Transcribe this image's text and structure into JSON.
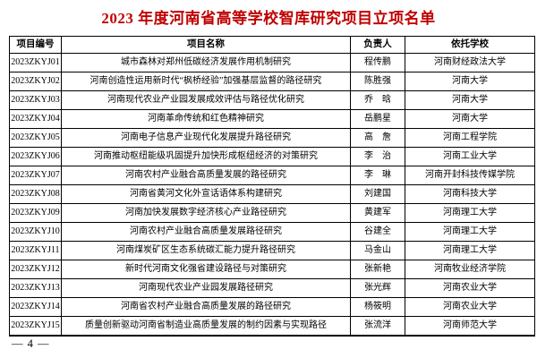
{
  "title": "2023 年度河南省高等学校智库研究项目立项名单",
  "title_color": "#c00000",
  "page_number": "— 4 —",
  "table": {
    "headers": [
      "项目编号",
      "项目名称",
      "负责人",
      "依托学校"
    ],
    "rows": [
      {
        "code": "2023ZKYJ01",
        "name": "城市森林对郑州低碳经济发展作用机制研究",
        "leader": "程传鹏",
        "school": "河南财经政法大学"
      },
      {
        "code": "2023ZKYJ02",
        "name": "河南创造性运用新时代“枫桥经验”加强基层监督的路径研究",
        "leader": "陈胜强",
        "school": "河南大学"
      },
      {
        "code": "2023ZKYJ03",
        "name": "河南现代农业产业园发展成效评估与路径优化研究",
        "leader": "乔　晗",
        "school": "河南大学"
      },
      {
        "code": "2023ZKYJ04",
        "name": "河南革命传统和红色精神研究",
        "leader": "岳鹏星",
        "school": "河南大学"
      },
      {
        "code": "2023ZKYJ05",
        "name": "河南电子信息产业现代化发展提升路径研究",
        "leader": "高　詹",
        "school": "河南工程学院"
      },
      {
        "code": "2023ZKYJ06",
        "name": "河南推动枢纽能级巩固提升加快形成枢纽经济的对策研究",
        "leader": "李　治",
        "school": "河南工业大学"
      },
      {
        "code": "2023ZKYJ07",
        "name": "河南农村产业融合高质量发展的路径研究",
        "leader": "李　琳",
        "school": "河南开封科技传媒学院"
      },
      {
        "code": "2023ZKYJ08",
        "name": "河南省黄河文化外宣话语体系构建研究",
        "leader": "刘建国",
        "school": "河南科技大学"
      },
      {
        "code": "2023ZKYJ09",
        "name": "河南加快发展数字经济核心产业路径研究",
        "leader": "黄建军",
        "school": "河南理工大学"
      },
      {
        "code": "2023ZKYJ10",
        "name": "河南农村产业融合高质量发展路径研究",
        "leader": "谷建全",
        "school": "河南理工大学"
      },
      {
        "code": "2023ZKYJ11",
        "name": "河南煤炭矿区生态系统碳汇能力提升路径研究",
        "leader": "马金山",
        "school": "河南理工大学"
      },
      {
        "code": "2023ZKYJ12",
        "name": "新时代河南文化强省建设路径与对策研究",
        "leader": "张新艳",
        "school": "河南牧业经济学院"
      },
      {
        "code": "2023ZKYJ13",
        "name": "河南现代农业产业园发展路径研究",
        "leader": "张光辉",
        "school": "河南农业大学"
      },
      {
        "code": "2023ZKYJ14",
        "name": "河南省农村产业融合高质量发展的路径研究",
        "leader": "杨筱明",
        "school": "河南农业大学"
      },
      {
        "code": "2023ZKYJ15",
        "name": "质量创新驱动河南省制造业高质量发展的制约因素与实现路径",
        "leader": "张流洋",
        "school": "河南师范大学"
      }
    ]
  }
}
